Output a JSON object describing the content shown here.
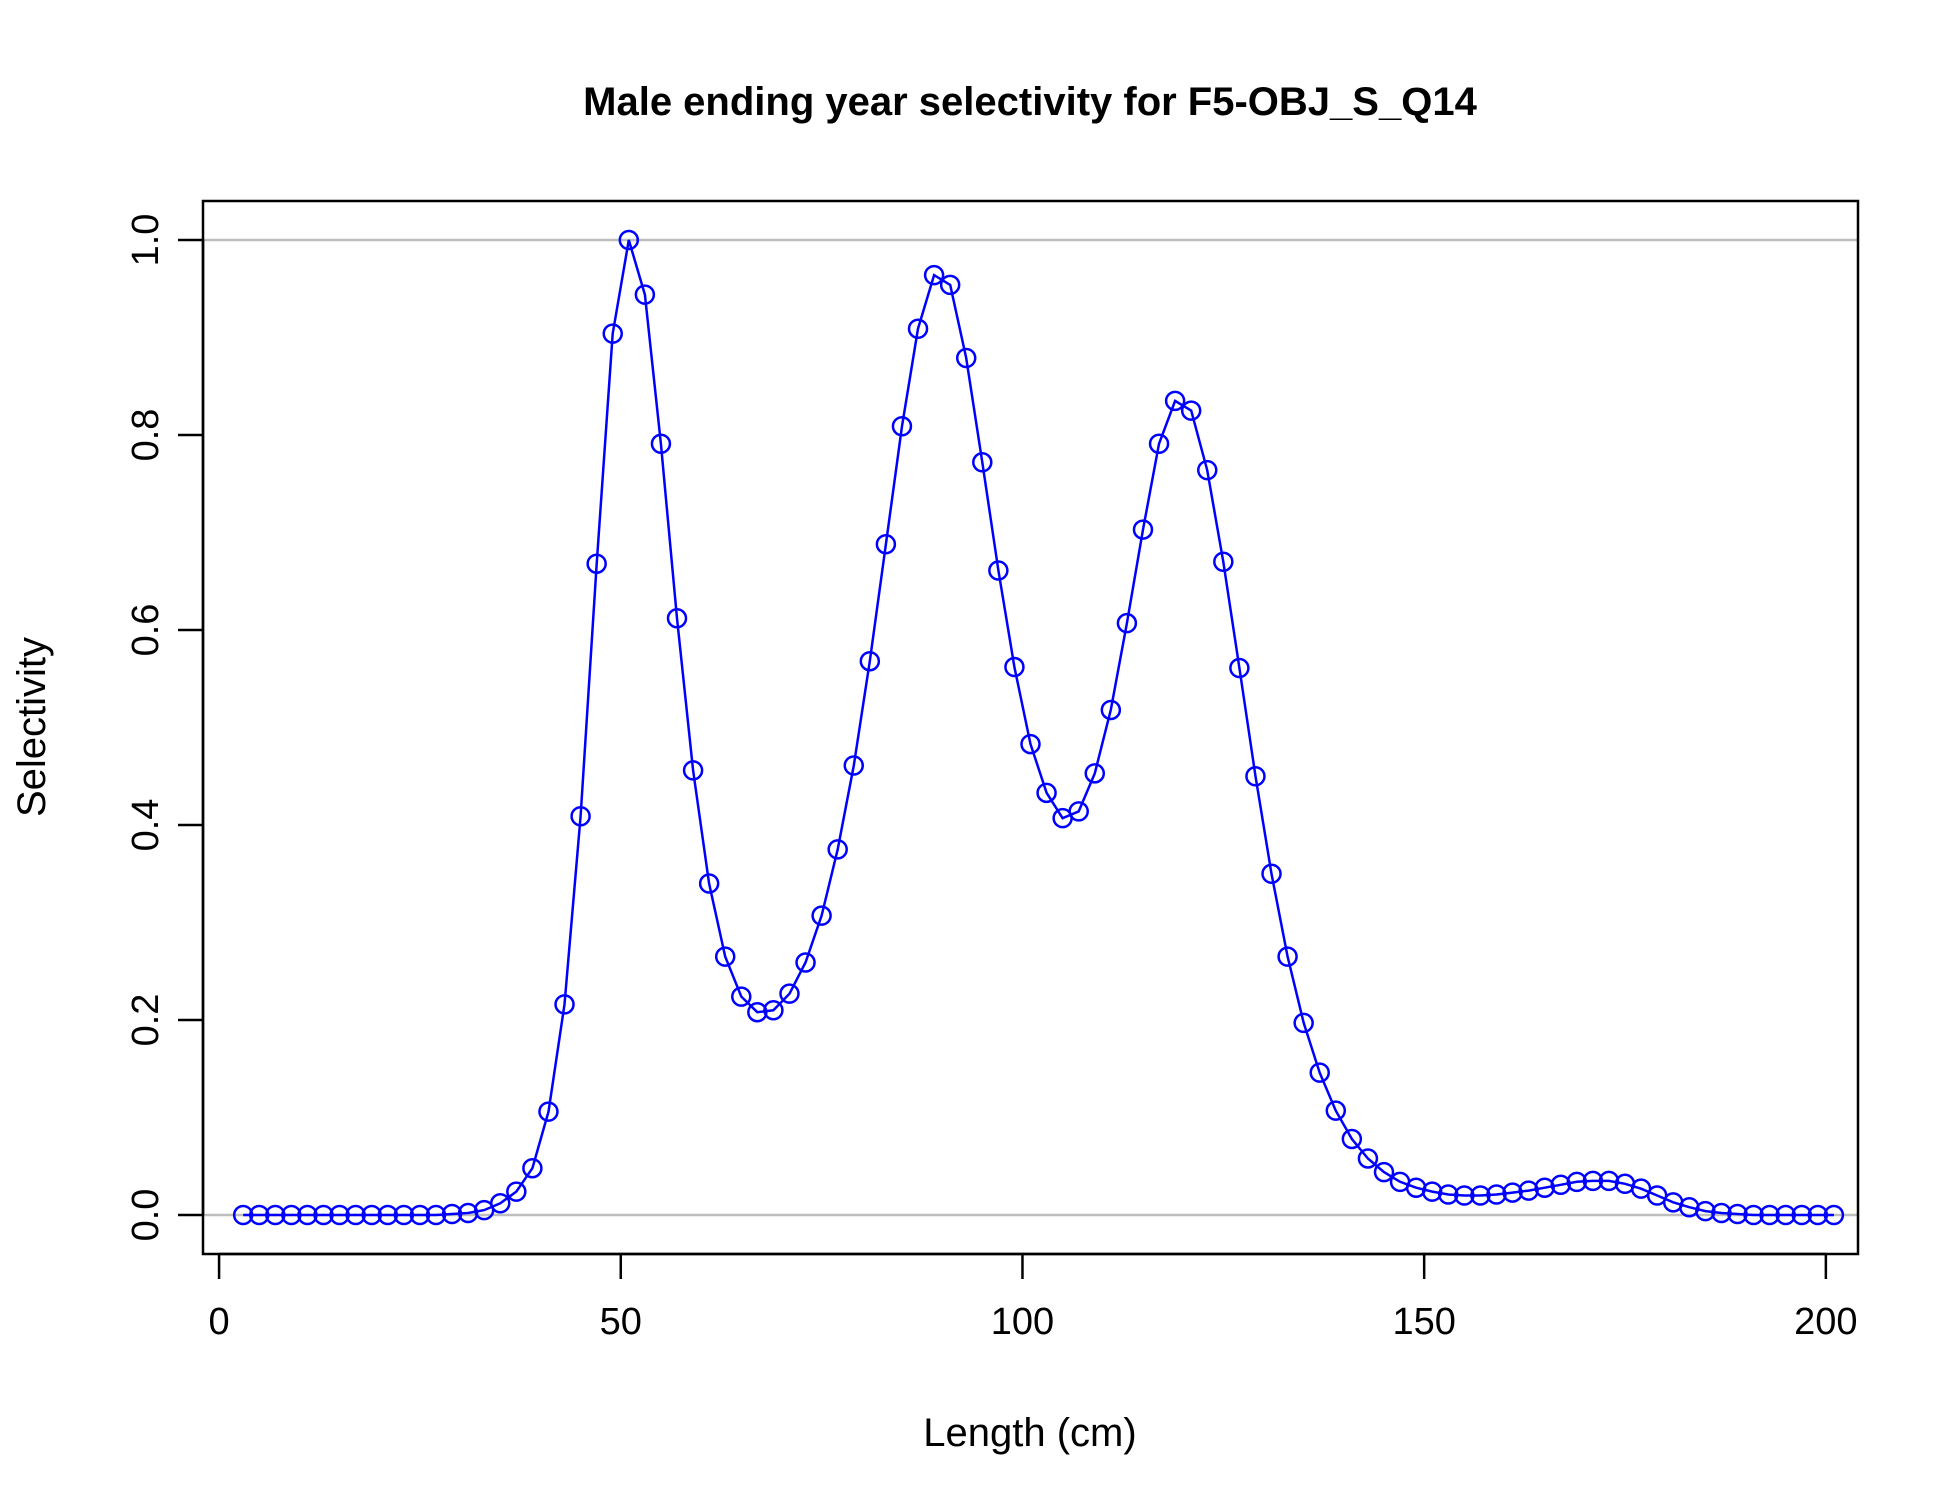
{
  "chart_data": {
    "type": "line",
    "title": "Male ending year selectivity for F5-OBJ_S_Q14",
    "xlabel": "Length (cm)",
    "ylabel": "Selectivity",
    "xlim": [
      -2,
      204
    ],
    "ylim": [
      -0.04,
      1.04
    ],
    "xticks": [
      0,
      50,
      100,
      150,
      200
    ],
    "yticks": [
      0.0,
      0.2,
      0.4,
      0.6,
      0.8,
      1.0
    ],
    "xtick_labels": [
      "0",
      "50",
      "100",
      "150",
      "200"
    ],
    "ytick_labels": [
      "0.0",
      "0.2",
      "0.4",
      "0.6",
      "0.8",
      "1.0"
    ],
    "reference_lines": [
      0,
      1
    ],
    "colors": {
      "series": "#0000ff",
      "reference": "#bebebe",
      "frame": "#000000"
    },
    "series": [
      {
        "x": [
          3,
          5,
          7,
          9,
          11,
          13,
          15,
          17,
          19,
          21,
          23,
          25,
          27,
          29,
          31,
          33,
          35,
          37,
          39,
          41,
          43,
          45,
          47,
          49,
          51,
          53,
          55,
          57,
          59,
          61,
          63,
          65,
          67,
          69,
          71,
          73,
          75,
          77,
          79,
          81,
          83,
          85,
          87,
          89,
          91,
          93,
          95,
          97,
          99,
          101,
          103,
          105,
          107,
          109,
          111,
          113,
          115,
          117,
          119,
          121,
          123,
          125,
          127,
          129,
          131,
          133,
          135,
          137,
          139,
          141,
          143,
          145,
          147,
          149,
          151,
          153,
          155,
          157,
          159,
          161,
          163,
          165,
          167,
          169,
          171,
          173,
          175,
          177,
          179,
          181,
          183,
          185,
          187,
          189,
          191,
          193,
          195,
          197,
          199,
          201
        ],
        "values": [
          0,
          0,
          0,
          0,
          0,
          0,
          0,
          0,
          0,
          0,
          0,
          0,
          0,
          0.001,
          0.002,
          0.005,
          0.012,
          0.024,
          0.048,
          0.106,
          0.216,
          0.409,
          0.668,
          0.904,
          1.0,
          0.944,
          0.791,
          0.612,
          0.456,
          0.34,
          0.265,
          0.224,
          0.208,
          0.21,
          0.227,
          0.259,
          0.307,
          0.375,
          0.461,
          0.568,
          0.688,
          0.809,
          0.909,
          0.964,
          0.954,
          0.879,
          0.772,
          0.661,
          0.562,
          0.483,
          0.433,
          0.407,
          0.414,
          0.453,
          0.518,
          0.607,
          0.703,
          0.791,
          0.835,
          0.825,
          0.764,
          0.67,
          0.561,
          0.45,
          0.35,
          0.265,
          0.197,
          0.146,
          0.107,
          0.078,
          0.058,
          0.044,
          0.034,
          0.028,
          0.024,
          0.021,
          0.02,
          0.02,
          0.021,
          0.023,
          0.025,
          0.028,
          0.031,
          0.034,
          0.035,
          0.035,
          0.032,
          0.027,
          0.02,
          0.013,
          0.008,
          0.004,
          0.002,
          0.001,
          0,
          0,
          0,
          0,
          0,
          0
        ]
      }
    ]
  }
}
